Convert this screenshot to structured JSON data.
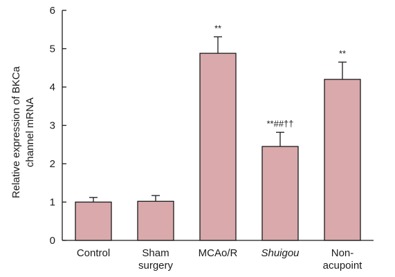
{
  "chart_data": {
    "type": "bar",
    "ylabel": "Relative expression of BKCa channel mRNA",
    "ylabel_lines": [
      "Relative expression of BKCa",
      "channel mRNA"
    ],
    "ylim": [
      0,
      6
    ],
    "yticks": [
      0,
      1,
      2,
      3,
      4,
      5,
      6
    ],
    "grid": false,
    "categories": [
      {
        "lines": [
          "Control"
        ],
        "italic": false
      },
      {
        "lines": [
          "Sham",
          "surgery"
        ],
        "italic": false
      },
      {
        "lines": [
          "MCAo/R"
        ],
        "italic": false
      },
      {
        "lines": [
          "Shuigou"
        ],
        "italic": true
      },
      {
        "lines": [
          "Non-",
          "acupoint"
        ],
        "italic": false
      }
    ],
    "values": [
      1.0,
      1.02,
      4.88,
      2.45,
      4.2
    ],
    "errors": [
      0.12,
      0.15,
      0.43,
      0.37,
      0.45
    ],
    "annotations": [
      "",
      "",
      "**",
      "**##††",
      "**"
    ],
    "colors": {
      "bar_fill": "#d9a9ab",
      "bar_stroke": "#1a1a1a",
      "axis": "#1a1a1a"
    }
  }
}
